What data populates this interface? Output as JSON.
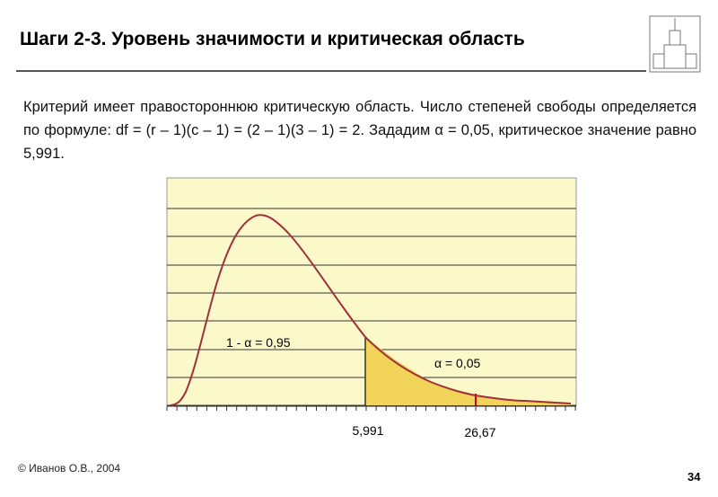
{
  "header": {
    "title": "Шаги 2-3. Уровень значимости и критическая область"
  },
  "body": {
    "text": "Критерий имеет правостороннюю критическую область. Число степеней свободы определяется по формуле: df = (r – 1)(c – 1) = (2 – 1)(3 – 1) = 2. Зададим α = 0,05, критическое значение равно 5,991."
  },
  "chart": {
    "annotations": [
      "1 - α = 0,95",
      "α = 0,05"
    ],
    "x_labels": [
      "5,991",
      "26,67"
    ]
  },
  "footer": {
    "author": "© Иванов О.В., 2004",
    "page": 34
  }
}
